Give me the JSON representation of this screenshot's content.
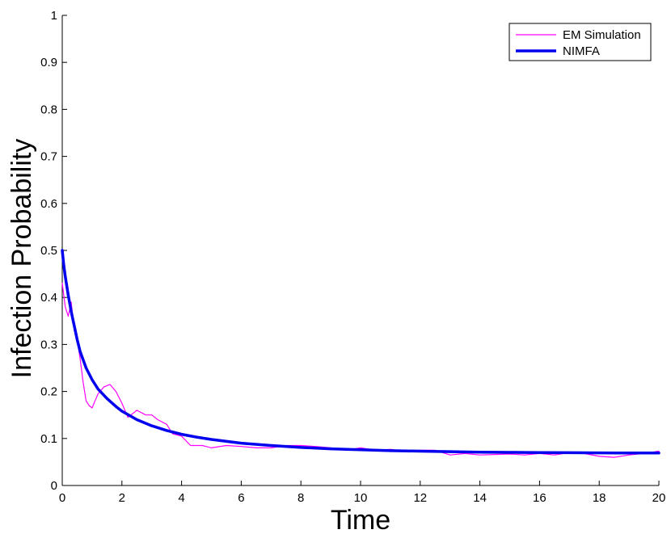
{
  "chart_data": {
    "type": "line",
    "title": "",
    "xlabel": "Time",
    "ylabel": "Infection Probability",
    "xlim": [
      0,
      20
    ],
    "ylim": [
      0,
      1
    ],
    "x_ticks": [
      0,
      2,
      4,
      6,
      8,
      10,
      12,
      14,
      16,
      18,
      20
    ],
    "y_ticks": [
      0,
      0.1,
      0.2,
      0.3,
      0.4,
      0.5,
      0.6,
      0.7,
      0.8,
      0.9,
      1
    ],
    "x_tick_labels": [
      "0",
      "2",
      "4",
      "6",
      "8",
      "10",
      "12",
      "14",
      "16",
      "18",
      "20"
    ],
    "y_tick_labels": [
      "0",
      "0.1",
      "0.2",
      "0.3",
      "0.4",
      "0.5",
      "0.6",
      "0.7",
      "0.8",
      "0.9",
      "1"
    ],
    "grid": false,
    "legend_position": "top-right",
    "series": [
      {
        "name": "EM Simulation",
        "color": "#ff00ff",
        "style": "thin",
        "x": [
          0,
          0.1,
          0.2,
          0.3,
          0.4,
          0.5,
          0.6,
          0.7,
          0.8,
          0.9,
          1.0,
          1.1,
          1.2,
          1.4,
          1.6,
          1.8,
          2.0,
          2.2,
          2.5,
          2.8,
          3.0,
          3.2,
          3.5,
          3.7,
          4.0,
          4.3,
          4.7,
          5.0,
          5.5,
          6.0,
          6.5,
          7.0,
          7.5,
          8.0,
          8.5,
          9.0,
          9.5,
          10.0,
          10.5,
          11.0,
          11.5,
          12.0,
          12.5,
          13.0,
          13.5,
          14.0,
          14.5,
          15.0,
          15.5,
          16.0,
          16.5,
          17.0,
          17.5,
          18.0,
          18.5,
          19.0,
          19.5,
          20.0
        ],
        "y": [
          0.43,
          0.38,
          0.36,
          0.39,
          0.33,
          0.31,
          0.27,
          0.22,
          0.18,
          0.17,
          0.165,
          0.18,
          0.195,
          0.21,
          0.215,
          0.2,
          0.175,
          0.145,
          0.16,
          0.15,
          0.15,
          0.14,
          0.13,
          0.11,
          0.105,
          0.085,
          0.085,
          0.08,
          0.085,
          0.083,
          0.08,
          0.08,
          0.085,
          0.085,
          0.083,
          0.08,
          0.075,
          0.08,
          0.075,
          0.077,
          0.073,
          0.075,
          0.075,
          0.065,
          0.068,
          0.065,
          0.066,
          0.067,
          0.065,
          0.068,
          0.065,
          0.07,
          0.068,
          0.062,
          0.06,
          0.065,
          0.068,
          0.073
        ]
      },
      {
        "name": "NIMFA",
        "color": "#0000ee",
        "style": "thick",
        "x": [
          0,
          0.05,
          0.1,
          0.2,
          0.3,
          0.4,
          0.5,
          0.6,
          0.8,
          1.0,
          1.2,
          1.5,
          1.8,
          2.0,
          2.5,
          3.0,
          3.5,
          4.0,
          4.5,
          5.0,
          6.0,
          7.0,
          8.0,
          9.0,
          10.0,
          11.0,
          12.0,
          13.0,
          14.0,
          15.0,
          16.0,
          17.0,
          18.0,
          19.0,
          20.0
        ],
        "y": [
          0.5,
          0.47,
          0.445,
          0.405,
          0.37,
          0.34,
          0.31,
          0.285,
          0.25,
          0.225,
          0.205,
          0.185,
          0.168,
          0.158,
          0.14,
          0.127,
          0.117,
          0.109,
          0.103,
          0.098,
          0.09,
          0.085,
          0.081,
          0.078,
          0.076,
          0.074,
          0.073,
          0.072,
          0.071,
          0.0705,
          0.07,
          0.0698,
          0.0695,
          0.069,
          0.069
        ]
      }
    ]
  }
}
